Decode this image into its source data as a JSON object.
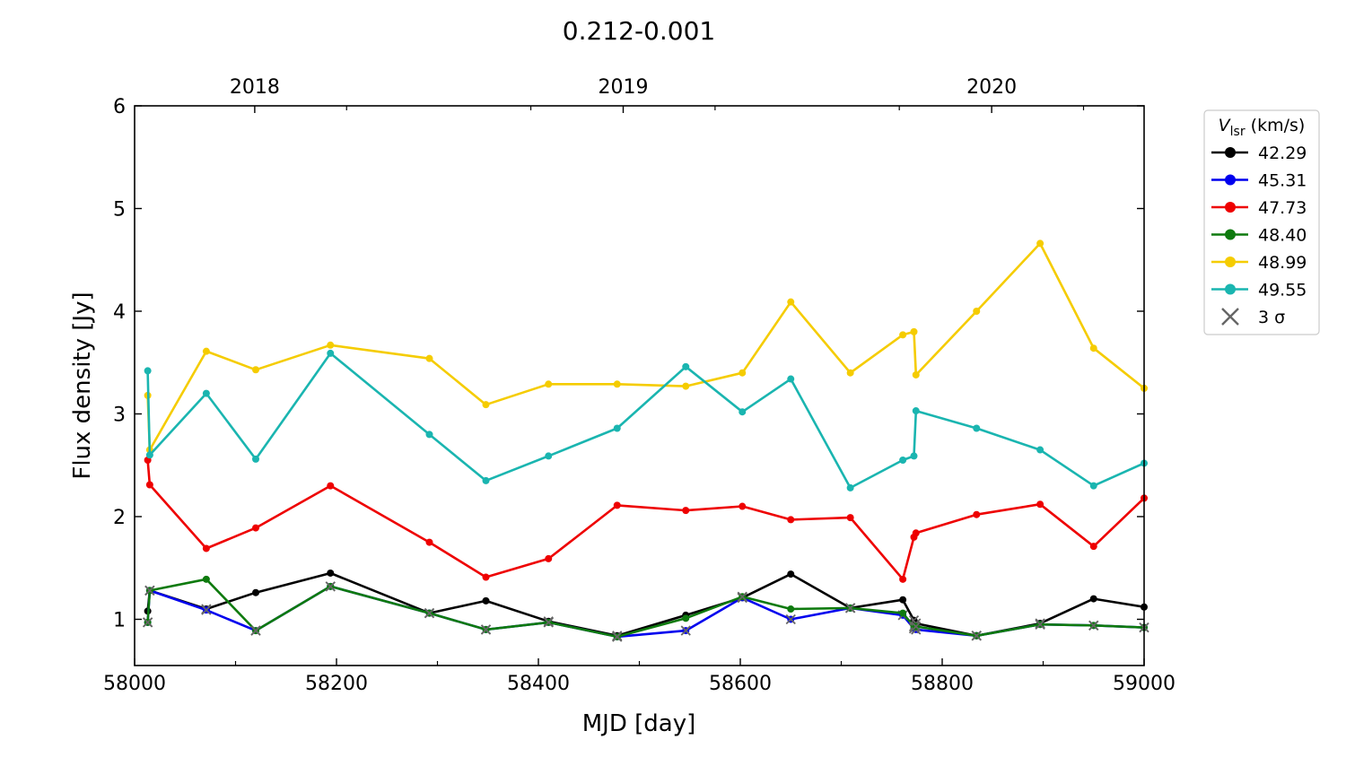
{
  "chart_data": {
    "type": "line",
    "title": "0.212-0.001",
    "xlabel": "MJD [day]",
    "ylabel": "Flux density [Jy]",
    "xlim": [
      58000,
      59000
    ],
    "ylim": [
      0.55,
      6.0
    ],
    "xticks": [
      58000,
      58200,
      58400,
      58600,
      58800,
      59000
    ],
    "yticks": [
      1,
      2,
      3,
      4,
      5,
      6
    ],
    "top_axis": {
      "labels": [
        {
          "label": "2018",
          "mjd": 58119
        },
        {
          "label": "2019",
          "mjd": 58484
        },
        {
          "label": "2020",
          "mjd": 58849
        }
      ],
      "year_ticks": [
        58119,
        58484,
        58849
      ]
    },
    "legend": {
      "title_main": "V",
      "title_sub": "lsr",
      "title_unit": " (km/s)",
      "position": "outside-right",
      "sigma_label": "3 σ"
    },
    "sigma_marker_color": "#666666",
    "series": [
      {
        "name": "42.29",
        "color": "#000000",
        "x": [
          58013,
          58015,
          58071,
          58120,
          58194,
          58292,
          58348,
          58410,
          58478,
          58546,
          58602,
          58650,
          58709,
          58761,
          58772,
          58774,
          58834,
          58897,
          58950,
          59000
        ],
        "y": [
          1.08,
          1.28,
          1.1,
          1.26,
          1.45,
          1.06,
          1.18,
          0.98,
          0.84,
          1.04,
          1.21,
          1.44,
          1.11,
          1.19,
          0.99,
          0.96,
          0.84,
          0.96,
          1.2,
          1.12
        ],
        "sigma": [
          false,
          true,
          true,
          false,
          false,
          true,
          false,
          true,
          true,
          false,
          true,
          false,
          true,
          false,
          true,
          true,
          true,
          true,
          false,
          false
        ]
      },
      {
        "name": "45.31",
        "color": "#0000ee",
        "x": [
          58013,
          58015,
          58071,
          58120,
          58194,
          58292,
          58348,
          58410,
          58478,
          58546,
          58602,
          58650,
          58709,
          58761,
          58772,
          58774,
          58834,
          58897,
          58950,
          59000
        ],
        "y": [
          0.97,
          1.28,
          1.09,
          0.89,
          1.32,
          1.06,
          0.9,
          0.97,
          0.83,
          0.89,
          1.21,
          1.0,
          1.11,
          1.04,
          0.91,
          0.9,
          0.84,
          0.95,
          0.94,
          0.92
        ],
        "sigma": [
          true,
          true,
          true,
          true,
          true,
          true,
          true,
          true,
          true,
          true,
          true,
          true,
          true,
          true,
          true,
          true,
          true,
          true,
          true,
          true
        ]
      },
      {
        "name": "47.73",
        "color": "#ee0000",
        "x": [
          58013,
          58015,
          58071,
          58120,
          58194,
          58292,
          58348,
          58410,
          58478,
          58546,
          58602,
          58650,
          58709,
          58761,
          58772,
          58774,
          58834,
          58897,
          58950,
          59000
        ],
        "y": [
          2.55,
          2.31,
          1.69,
          1.89,
          2.3,
          1.75,
          1.41,
          1.59,
          2.11,
          2.06,
          2.1,
          1.97,
          1.99,
          1.39,
          1.8,
          1.84,
          2.02,
          2.12,
          1.71,
          2.18
        ],
        "sigma": [
          false,
          false,
          false,
          false,
          false,
          false,
          false,
          false,
          false,
          false,
          false,
          false,
          false,
          false,
          false,
          false,
          false,
          false,
          false,
          false
        ]
      },
      {
        "name": "48.40",
        "color": "#0e7a0e",
        "x": [
          58013,
          58015,
          58071,
          58120,
          58194,
          58292,
          58348,
          58410,
          58478,
          58546,
          58602,
          58650,
          58709,
          58761,
          58772,
          58774,
          58834,
          58897,
          58950,
          59000
        ],
        "y": [
          0.97,
          1.28,
          1.39,
          0.89,
          1.32,
          1.06,
          0.9,
          0.97,
          0.83,
          1.01,
          1.22,
          1.1,
          1.11,
          1.06,
          0.93,
          0.93,
          0.84,
          0.95,
          0.94,
          0.92
        ],
        "sigma": [
          true,
          true,
          false,
          true,
          true,
          true,
          true,
          true,
          true,
          false,
          true,
          false,
          true,
          false,
          true,
          true,
          true,
          true,
          true,
          true
        ]
      },
      {
        "name": "48.99",
        "color": "#f5cc00",
        "x": [
          58013,
          58015,
          58071,
          58120,
          58194,
          58292,
          58348,
          58410,
          58478,
          58546,
          58602,
          58650,
          58709,
          58761,
          58772,
          58774,
          58834,
          58897,
          58950,
          59000
        ],
        "y": [
          3.18,
          2.65,
          3.61,
          3.43,
          3.67,
          3.54,
          3.09,
          3.29,
          3.29,
          3.27,
          3.4,
          4.09,
          3.4,
          3.77,
          3.8,
          3.38,
          4.0,
          4.66,
          3.64,
          3.25
        ],
        "sigma": [
          false,
          false,
          false,
          false,
          false,
          false,
          false,
          false,
          false,
          false,
          false,
          false,
          false,
          false,
          false,
          false,
          false,
          false,
          false,
          false
        ]
      },
      {
        "name": "49.55",
        "color": "#1ab5b0",
        "x": [
          58013,
          58015,
          58071,
          58120,
          58194,
          58292,
          58348,
          58410,
          58478,
          58546,
          58602,
          58650,
          58709,
          58761,
          58772,
          58774,
          58834,
          58897,
          58950,
          59000
        ],
        "y": [
          3.42,
          2.6,
          3.2,
          2.56,
          3.59,
          2.8,
          2.35,
          2.59,
          2.86,
          3.46,
          3.02,
          3.34,
          2.28,
          2.55,
          2.59,
          3.03,
          2.86,
          2.65,
          2.3,
          2.52
        ],
        "sigma": [
          false,
          false,
          false,
          false,
          false,
          false,
          false,
          false,
          false,
          false,
          false,
          false,
          false,
          false,
          false,
          false,
          false,
          false,
          false,
          false
        ]
      }
    ]
  }
}
